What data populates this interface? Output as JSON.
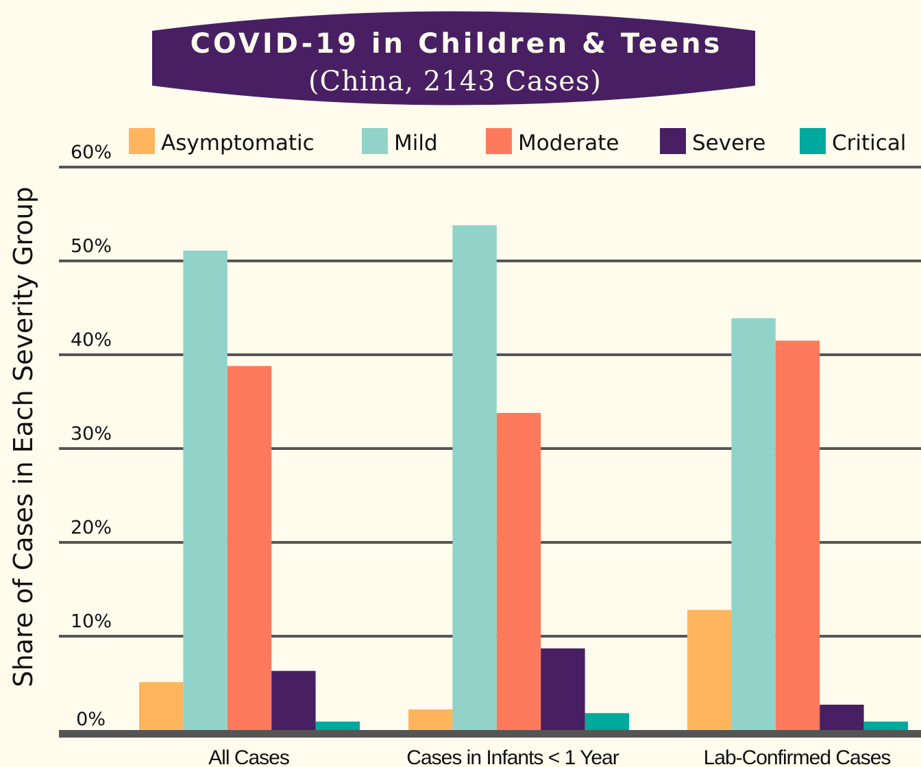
{
  "chart_data": {
    "type": "bar",
    "title": "COVID-19 in Children & Teens",
    "subtitle": "(China, 2143 Cases)",
    "xlabel": "",
    "ylabel": "Share of Cases in Each Severity Group",
    "ylim": [
      0,
      60
    ],
    "yticks": [
      0,
      10,
      20,
      30,
      40,
      50,
      60
    ],
    "ytick_labels": [
      "0%",
      "10%",
      "20%",
      "30%",
      "40%",
      "50%",
      "60%"
    ],
    "grid": true,
    "legend_position": "top",
    "categories": [
      "All Cases",
      "Cases in Infants < 1 Year",
      "Lab-Confirmed Cases"
    ],
    "series": [
      {
        "name": "Asymptomatic",
        "color": "#ffb55e",
        "values": [
          5.1,
          2.2,
          12.8
        ]
      },
      {
        "name": "Mild",
        "color": "#91d3c9",
        "values": [
          51.1,
          53.8,
          43.9
        ]
      },
      {
        "name": "Moderate",
        "color": "#ff7a5c",
        "values": [
          38.8,
          33.8,
          41.5
        ]
      },
      {
        "name": "Severe",
        "color": "#481f63",
        "values": [
          6.3,
          8.7,
          2.7
        ]
      },
      {
        "name": "Critical",
        "color": "#00a99d",
        "values": [
          0.9,
          1.8,
          0.9
        ]
      }
    ]
  },
  "colors": {
    "background": "#fffbed",
    "title_banner": "#481f63",
    "gridline": "#555555",
    "text": "#111111"
  }
}
